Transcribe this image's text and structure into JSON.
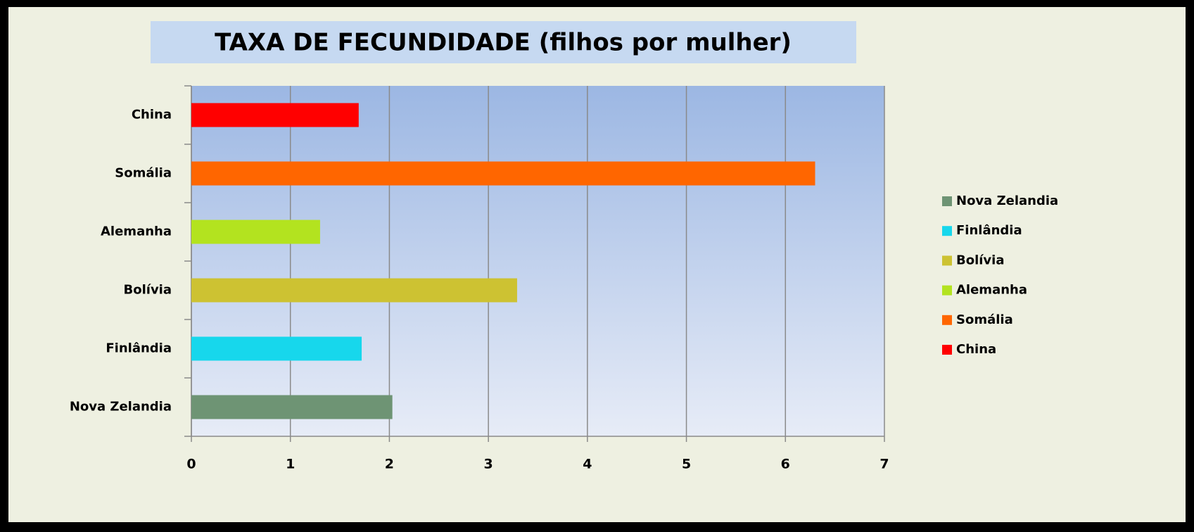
{
  "chart_data": {
    "type": "bar",
    "orientation": "horizontal",
    "title": "TAXA DE FECUNDIDADE (filhos por mulher)",
    "categories": [
      "Nova Zelandia",
      "Finlândia",
      "Bolívia",
      "Alemanha",
      "Somália",
      "China"
    ],
    "values": [
      2.03,
      1.72,
      3.29,
      1.3,
      6.3,
      1.69
    ],
    "colors": [
      "#6e9474",
      "#17d7ec",
      "#cdc232",
      "#b3e31f",
      "#ff6600",
      "#ff0000"
    ],
    "xlim": [
      0,
      7
    ],
    "xticks": [
      0,
      1,
      2,
      3,
      4,
      5,
      6,
      7
    ],
    "grid": true,
    "legend": "right"
  }
}
